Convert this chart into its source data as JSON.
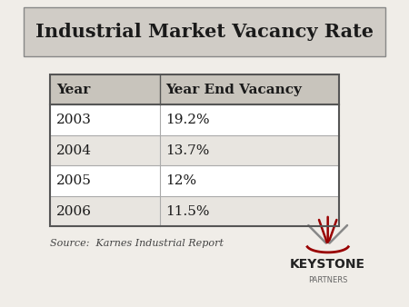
{
  "title": "Industrial Market Vacancy Rate",
  "table_headers": [
    "Year",
    "Year End Vacancy"
  ],
  "table_rows": [
    [
      "2003",
      "19.2%"
    ],
    [
      "2004",
      "13.7%"
    ],
    [
      "2005",
      "12%"
    ],
    [
      "2006",
      "11.5%"
    ]
  ],
  "source_text": "Source:  Karnes Industrial Report",
  "bg_color": "#f0ede8",
  "header_bg": "#c8c4bc",
  "row_bg_odd": "#ffffff",
  "row_bg_even": "#e8e5e0",
  "border_color": "#555555",
  "title_fontsize": 15,
  "header_fontsize": 11,
  "data_fontsize": 11,
  "source_fontsize": 8,
  "keystone_text": "KEYSTONE",
  "partners_text": "PARTNERS",
  "keystone_color": "#222222",
  "partners_color": "#666666",
  "crown_color_red": "#990000",
  "crown_color_gray": "#888888"
}
